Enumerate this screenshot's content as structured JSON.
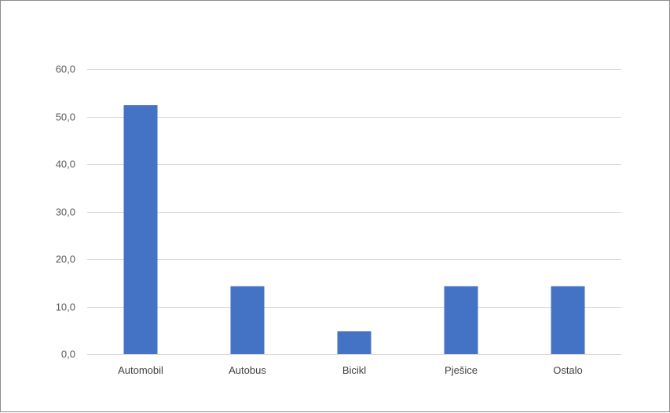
{
  "chart_data": {
    "type": "bar",
    "title": "",
    "xlabel": "",
    "ylabel": "",
    "categories": [
      "Automobil",
      "Autobus",
      "Bicikl",
      "Pješice",
      "Ostalo"
    ],
    "values": [
      52.4,
      14.3,
      4.8,
      14.3,
      14.3
    ],
    "ylim": [
      0,
      60
    ],
    "yticks": [
      "0,0",
      "10,0",
      "20,0",
      "30,0",
      "40,0",
      "50,0",
      "60,0"
    ],
    "grid": true,
    "legend": "none",
    "bar_color": "#4472C4",
    "grid_color": "#d9d9d9"
  }
}
